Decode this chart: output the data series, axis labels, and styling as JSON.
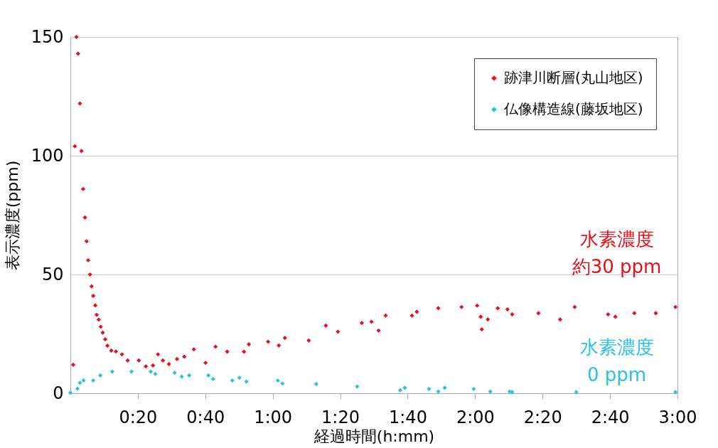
{
  "chart_data": {
    "type": "scatter",
    "xlabel": "経過時間(h:mm)",
    "ylabel": "表示濃度(ppm)",
    "xlim": [
      0,
      3
    ],
    "xticks": [
      {
        "value": 0.3333,
        "label": "0:20"
      },
      {
        "value": 0.6667,
        "label": "0:40"
      },
      {
        "value": 1,
        "label": "1:00"
      },
      {
        "value": 1.3333,
        "label": "1:20"
      },
      {
        "value": 1.6667,
        "label": "1:40"
      },
      {
        "value": 2,
        "label": "2:00"
      },
      {
        "value": 2.3333,
        "label": "2:20"
      },
      {
        "value": 2.6667,
        "label": "2:40"
      },
      {
        "value": 3,
        "label": "3:00"
      }
    ],
    "ylim": [
      0,
      150
    ],
    "yticks": [
      0,
      50,
      100,
      150
    ],
    "grid": "y",
    "legend": "top right",
    "marker": "diamond",
    "series": [
      {
        "name": "跡津川断層(丸山地区)",
        "color": "#e8101a",
        "x": [
          0.014,
          0.022,
          0.03,
          0.038,
          0.047,
          0.055,
          0.063,
          0.072,
          0.08,
          0.088,
          0.097,
          0.105,
          0.113,
          0.123,
          0.13,
          0.14,
          0.15,
          0.16,
          0.172,
          0.183,
          0.202,
          0.225,
          0.255,
          0.283,
          0.338,
          0.373,
          0.408,
          0.433,
          0.457,
          0.487,
          0.527,
          0.563,
          0.61,
          0.668,
          0.717,
          0.775,
          0.858,
          0.882,
          0.977,
          1.03,
          1.06,
          1.178,
          1.262,
          1.322,
          1.44,
          1.488,
          1.523,
          1.558,
          1.688,
          1.712,
          1.818,
          1.933,
          2.01,
          2.028,
          2.033,
          2.063,
          2.112,
          2.16,
          2.183,
          2.313,
          2.42,
          2.492,
          2.657,
          2.693,
          2.787,
          2.893,
          2.99
        ],
        "values": [
          12,
          104,
          150,
          143,
          122,
          102,
          86,
          74,
          64,
          56,
          50,
          45,
          41,
          37,
          33,
          31,
          28,
          25.5,
          22.7,
          20,
          18,
          17.6,
          16.4,
          13.8,
          13.8,
          11.3,
          11.7,
          16.4,
          13.8,
          12.3,
          14.4,
          15.4,
          18.5,
          12.8,
          19.6,
          17.5,
          17.5,
          20.6,
          21.7,
          20.1,
          23.3,
          22.2,
          28.5,
          25.9,
          29.6,
          30.1,
          26.4,
          32.7,
          32.7,
          34.3,
          35.8,
          36.3,
          36.9,
          32.2,
          26.9,
          31.1,
          35.8,
          35.3,
          33.2,
          33.7,
          31.1,
          36.3,
          33.2,
          32.2,
          33.7,
          33.7,
          36.3
        ]
      },
      {
        "name": "仏像構造線(藤坂地区)",
        "color": "#26c3e4",
        "x": [
          0,
          0.035,
          0.047,
          0.065,
          0.113,
          0.148,
          0.207,
          0.302,
          0.397,
          0.42,
          0.515,
          0.55,
          0.587,
          0.682,
          0.705,
          0.8,
          0.835,
          0.87,
          1.025,
          1.048,
          1.215,
          1.417,
          1.63,
          1.653,
          1.772,
          1.818,
          1.85,
          1.993,
          2.075,
          2.17,
          2.183,
          2.5,
          2.99
        ],
        "values": [
          0.2,
          1.9,
          4.4,
          5.4,
          5.4,
          7.5,
          9.1,
          9.1,
          9.1,
          8.1,
          8.6,
          7,
          7.5,
          7.5,
          6,
          5.4,
          6.5,
          4.9,
          5.4,
          4.1,
          3.9,
          2.8,
          1.3,
          2.3,
          1.8,
          0.7,
          2.3,
          1.8,
          0.7,
          0.7,
          0.5,
          0.5,
          0.5
        ]
      }
    ],
    "annotations": [
      "水素濃度",
      "約30 ppm",
      "水素濃度",
      "0 ppm"
    ]
  }
}
